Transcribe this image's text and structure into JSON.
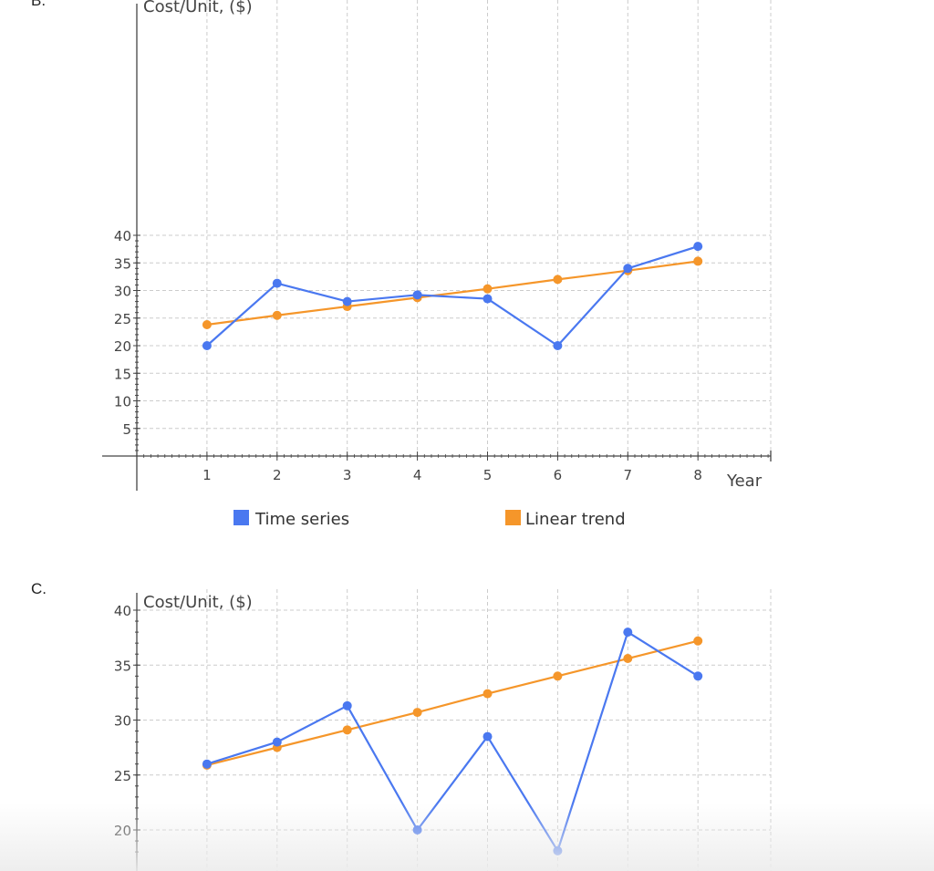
{
  "options": [
    {
      "label": "B."
    },
    {
      "label": "C."
    }
  ],
  "colors": {
    "time_series": "#4a78f0",
    "linear_trend": "#f5962a",
    "grid": "#cccccc",
    "axis": "#444444",
    "text": "#444444"
  },
  "legend": {
    "time_series": "Time series",
    "linear_trend": "Linear trend"
  },
  "chart_data": [
    {
      "type": "line",
      "option": "B.",
      "ylabel": "Cost/Unit, ($)",
      "xlabel": "Year",
      "x": [
        1,
        2,
        3,
        4,
        5,
        6,
        7,
        8
      ],
      "xlim": [
        0,
        9
      ],
      "ylim": [
        0,
        40
      ],
      "yticks": [
        5,
        10,
        15,
        20,
        25,
        30,
        35,
        40
      ],
      "grid": true,
      "legend_position": "bottom",
      "series": [
        {
          "name": "Time series",
          "values": [
            20,
            31.3,
            28,
            29.2,
            28.5,
            20,
            34,
            38
          ]
        },
        {
          "name": "Linear trend",
          "values": [
            23.8,
            25.5,
            27.1,
            28.7,
            30.3,
            32,
            33.6,
            35.3
          ]
        }
      ]
    },
    {
      "type": "line",
      "option": "C.",
      "ylabel": "Cost/Unit, ($)",
      "xlabel": "",
      "x": [
        1,
        2,
        3,
        4,
        5,
        6,
        7,
        8
      ],
      "xlim": [
        0,
        9
      ],
      "ylim": [
        18,
        40
      ],
      "yticks": [
        20,
        25,
        30,
        35,
        40
      ],
      "grid": true,
      "series": [
        {
          "name": "Time series",
          "values": [
            26,
            28,
            31.3,
            20,
            28.5,
            18.1,
            38,
            34
          ]
        },
        {
          "name": "Linear trend",
          "values": [
            25.9,
            27.5,
            29.1,
            30.7,
            32.4,
            34,
            35.6,
            37.2
          ]
        }
      ]
    }
  ]
}
